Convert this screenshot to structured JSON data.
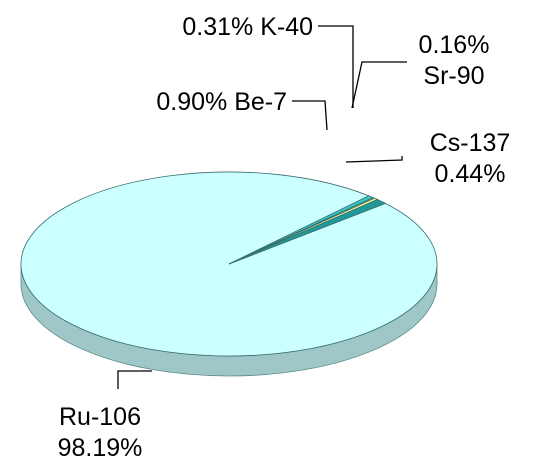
{
  "chart_data": {
    "type": "pie",
    "title": "",
    "three_d": true,
    "slices": [
      {
        "label": "Ru-106",
        "value": 98.19,
        "value_text": "98.19%",
        "color": "#ccffff"
      },
      {
        "label": "Cs-137",
        "value": 0.44,
        "value_text": "0.44%",
        "color": "#33cccc"
      },
      {
        "label": "Sr-90",
        "value": 0.16,
        "value_text": "0.16%",
        "color": "#99cc66"
      },
      {
        "label": "K-40",
        "value": 0.31,
        "value_text": "0.31%",
        "color": "#ffff99"
      },
      {
        "label": "Be-7",
        "value": 0.9,
        "value_text": "0.90%",
        "color": "#1f9a9a"
      }
    ]
  }
}
